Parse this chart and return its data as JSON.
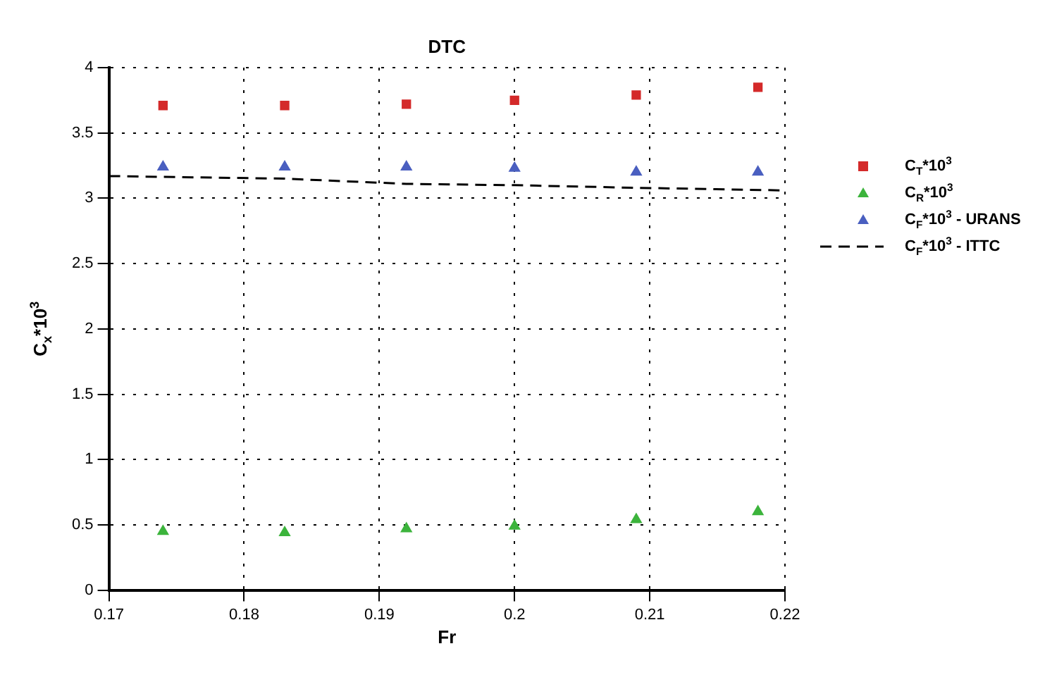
{
  "chart_data": {
    "type": "scatter",
    "title": "DTC",
    "xlabel": "Fr",
    "ylabel": "C$_{x}$*10$^{3}$",
    "xlim": [
      0.17,
      0.22
    ],
    "xticks": [
      0.17,
      0.18,
      0.19,
      0.2,
      0.21,
      0.22
    ],
    "ylim": [
      0,
      4
    ],
    "yticks": [
      0,
      0.5,
      1,
      1.5,
      2,
      2.5,
      3,
      3.5,
      4
    ],
    "grid": true,
    "legend": "right",
    "series": [
      {
        "name": "C$_{T}$*10$^{3}$",
        "color": "#d42a2a",
        "marker": "square",
        "x": [
          0.174,
          0.183,
          0.192,
          0.2,
          0.209,
          0.218
        ],
        "values": [
          3.71,
          3.71,
          3.72,
          3.75,
          3.79,
          3.85
        ]
      },
      {
        "name": "C$_{R}$*10$^{3}$",
        "color": "#3cb43c",
        "marker": "triangle",
        "x": [
          0.174,
          0.183,
          0.192,
          0.2,
          0.209,
          0.218
        ],
        "values": [
          0.45,
          0.44,
          0.47,
          0.49,
          0.54,
          0.6
        ]
      },
      {
        "name": "C$_{F}$*10$^{3}$ - URANS",
        "color": "#4a5fc0",
        "marker": "triangle",
        "x": [
          0.174,
          0.183,
          0.192,
          0.2,
          0.209,
          0.218
        ],
        "values": [
          3.24,
          3.24,
          3.24,
          3.23,
          3.2,
          3.2
        ]
      },
      {
        "name": "C$_{F}$*10$^{3}$ - ITTC",
        "type": "line",
        "color": "#000000",
        "marker": "none",
        "line_style": "dashed",
        "x": [
          0.17,
          0.183,
          0.192,
          0.2,
          0.209,
          0.22
        ],
        "values": [
          3.17,
          3.15,
          3.11,
          3.1,
          3.08,
          3.06
        ]
      }
    ]
  }
}
